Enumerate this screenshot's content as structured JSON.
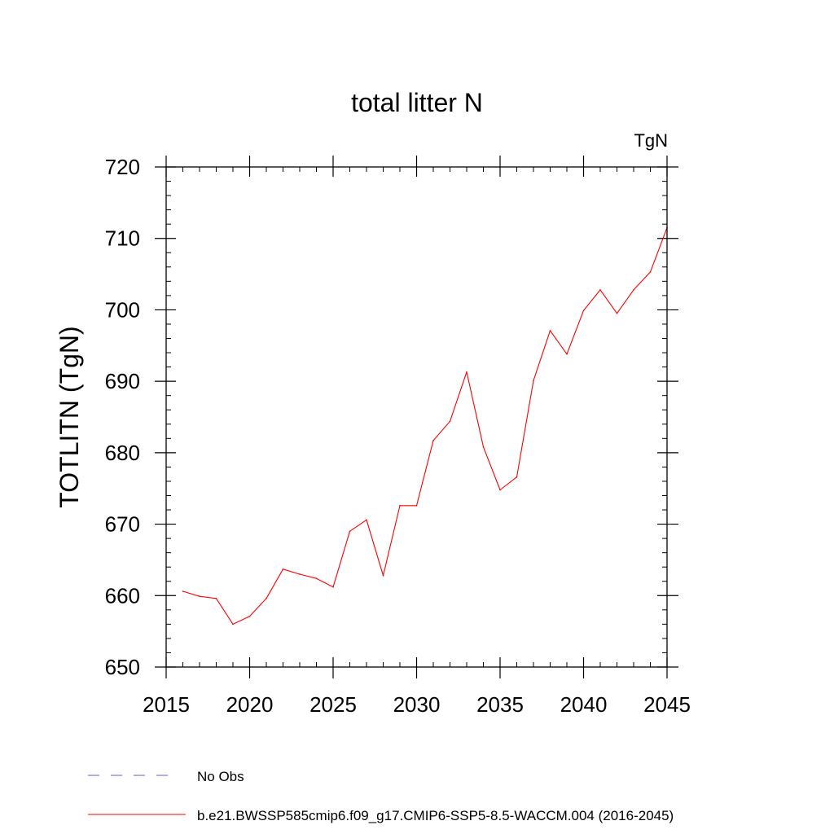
{
  "chart_data": {
    "type": "line",
    "title": "total litter N",
    "units": "TgN",
    "ylabel": "TOTLITN  (TgN)",
    "xlabel": "",
    "xlim": [
      2015,
      2045
    ],
    "ylim": [
      650,
      720
    ],
    "xticks": [
      2015,
      2020,
      2025,
      2030,
      2035,
      2040,
      2045
    ],
    "yticks": [
      650,
      660,
      670,
      680,
      690,
      700,
      710,
      720
    ],
    "grid": false,
    "legend_placement": "bottom",
    "series": [
      {
        "name": "b.e21.BWSSP585cmip6.f09_g17.CMIP6-SSP5-8.5-WACCM.004 (2016-2045)",
        "color": "#ff0000",
        "style": "solid",
        "x": [
          2016,
          2017,
          2018,
          2019,
          2020,
          2021,
          2022,
          2023,
          2024,
          2025,
          2026,
          2027,
          2028,
          2029,
          2030,
          2031,
          2032,
          2033,
          2034,
          2035,
          2036,
          2037,
          2038,
          2039,
          2040,
          2041,
          2042,
          2043,
          2044,
          2045
        ],
        "values": [
          660.6,
          659.9,
          659.6,
          656.0,
          657.1,
          659.6,
          663.7,
          663.0,
          662.4,
          661.2,
          669.0,
          670.6,
          662.8,
          672.6,
          672.6,
          681.7,
          684.4,
          691.3,
          680.8,
          674.8,
          676.6,
          690.1,
          697.1,
          693.8,
          699.9,
          702.8,
          699.5,
          702.8,
          705.3,
          711.5
        ]
      }
    ],
    "legend": [
      {
        "label": "No Obs",
        "color": "#6a5acd",
        "style": "dashed"
      },
      {
        "label": "b.e21.BWSSP585cmip6.f09_g17.CMIP6-SSP5-8.5-WACCM.004 (2016-2045)",
        "color": "#ff0000",
        "style": "solid"
      }
    ]
  }
}
